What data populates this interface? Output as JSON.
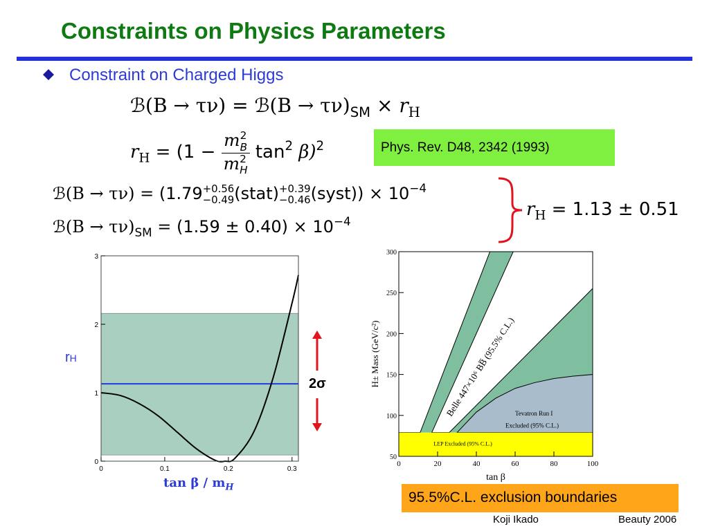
{
  "slide": {
    "title": "Constraints on Physics Parameters",
    "bullet": "Constraint on Charged Higgs",
    "reference": "Phys. Rev. D48, 2342 (1993)",
    "exclusion_note": "95.5%C.L. exclusion boundaries",
    "author": "Koji Ikado",
    "event": "Beauty 2006"
  },
  "equations": {
    "B": "ℬ",
    "process": "(B → τν)",
    "eq_sign": "=",
    "times": "×",
    "sm": "SM",
    "rH_r": "r",
    "rH_H": "H",
    "one_minus": "(1 −",
    "m2B_m": "m",
    "m2B_sup": "2",
    "m2B_sub": "B",
    "m2H_m": "m",
    "m2H_sup": "2",
    "m2H_sub": "H",
    "tan2": "tan",
    "tan2_sup": "2",
    "beta": "β)",
    "beta_sup": "2",
    "meas_value": "(1.79",
    "meas_stat_up": "+0.56",
    "meas_stat_dn": "−0.49",
    "meas_stat": "(stat)",
    "meas_syst_up": "+0.39",
    "meas_syst_dn": "−0.46",
    "meas_syst": "(syst))",
    "ten": "10",
    "ten_exp": "−4",
    "sm_value": "(1.59 ± 0.40)",
    "rH_result": "= 1.13 ± 0.51"
  },
  "colors": {
    "title": "#0f7a12",
    "rule": "#2430d8",
    "bullet": "#1a1aa0",
    "band": "#a9cfc1",
    "blue_line": "#1f3be0",
    "red": "#e0141c",
    "green_region": "#7fbfa0",
    "gray_region": "#a9bccb",
    "yellow_region": "#ffff00",
    "ref_box": "#80f040",
    "note_box": "#ffa51a"
  },
  "chart_data": [
    {
      "type": "line",
      "title": "",
      "ylabel": "r",
      "ylabel_sub": "H",
      "xlabel": "tan β / m",
      "xlabel_sub": "H",
      "xlim": [
        0,
        0.31
      ],
      "ylim": [
        0,
        3
      ],
      "xticks": [
        "0",
        "0.1",
        "0.2",
        "0.3"
      ],
      "yticks": [
        "0",
        "1",
        "2",
        "3"
      ],
      "band": {
        "lower": 0.09,
        "upper": 2.16
      },
      "central": 1.13,
      "curve": {
        "x": [
          0,
          0.03,
          0.06,
          0.09,
          0.12,
          0.15,
          0.18,
          0.195,
          0.21,
          0.24,
          0.27,
          0.3,
          0.31
        ],
        "y": [
          1.0,
          0.96,
          0.84,
          0.66,
          0.42,
          0.18,
          0.01,
          0.0,
          0.04,
          0.43,
          1.21,
          2.31,
          2.72
        ]
      },
      "arrow_label": "2σ",
      "grid": false
    },
    {
      "type": "area",
      "title": "",
      "xlabel": "tan β",
      "ylabel": "H± Mass (GeV/c²)",
      "xlim": [
        0,
        100
      ],
      "ylim": [
        50,
        300
      ],
      "xticks": [
        "0",
        "20",
        "40",
        "60",
        "80",
        "100"
      ],
      "yticks": [
        "50",
        "100",
        "150",
        "200",
        "250",
        "300"
      ],
      "regions": [
        {
          "name": "LEP Excluded (95% C.L.)",
          "y_max": 79
        },
        {
          "name": "Tevatron Run I Excluded (95% C.L.)",
          "boundary_x": [
            30,
            40,
            50,
            60,
            70,
            80,
            90,
            100
          ],
          "boundary_y": [
            79,
            104,
            121,
            133,
            140,
            145,
            148,
            150
          ]
        },
        {
          "name": "Belle 447×10⁶ BB̅ (95.5% C.L.)"
        }
      ],
      "excl_left_lower": {
        "x": [
          11,
          47
        ],
        "y": [
          79,
          300
        ]
      },
      "excl_left_upper": {
        "x": [
          17,
          59
        ],
        "y": [
          79,
          300
        ]
      },
      "excl_right": {
        "x": [
          26,
          100
        ],
        "y": [
          79,
          255
        ]
      },
      "grid": false
    }
  ]
}
